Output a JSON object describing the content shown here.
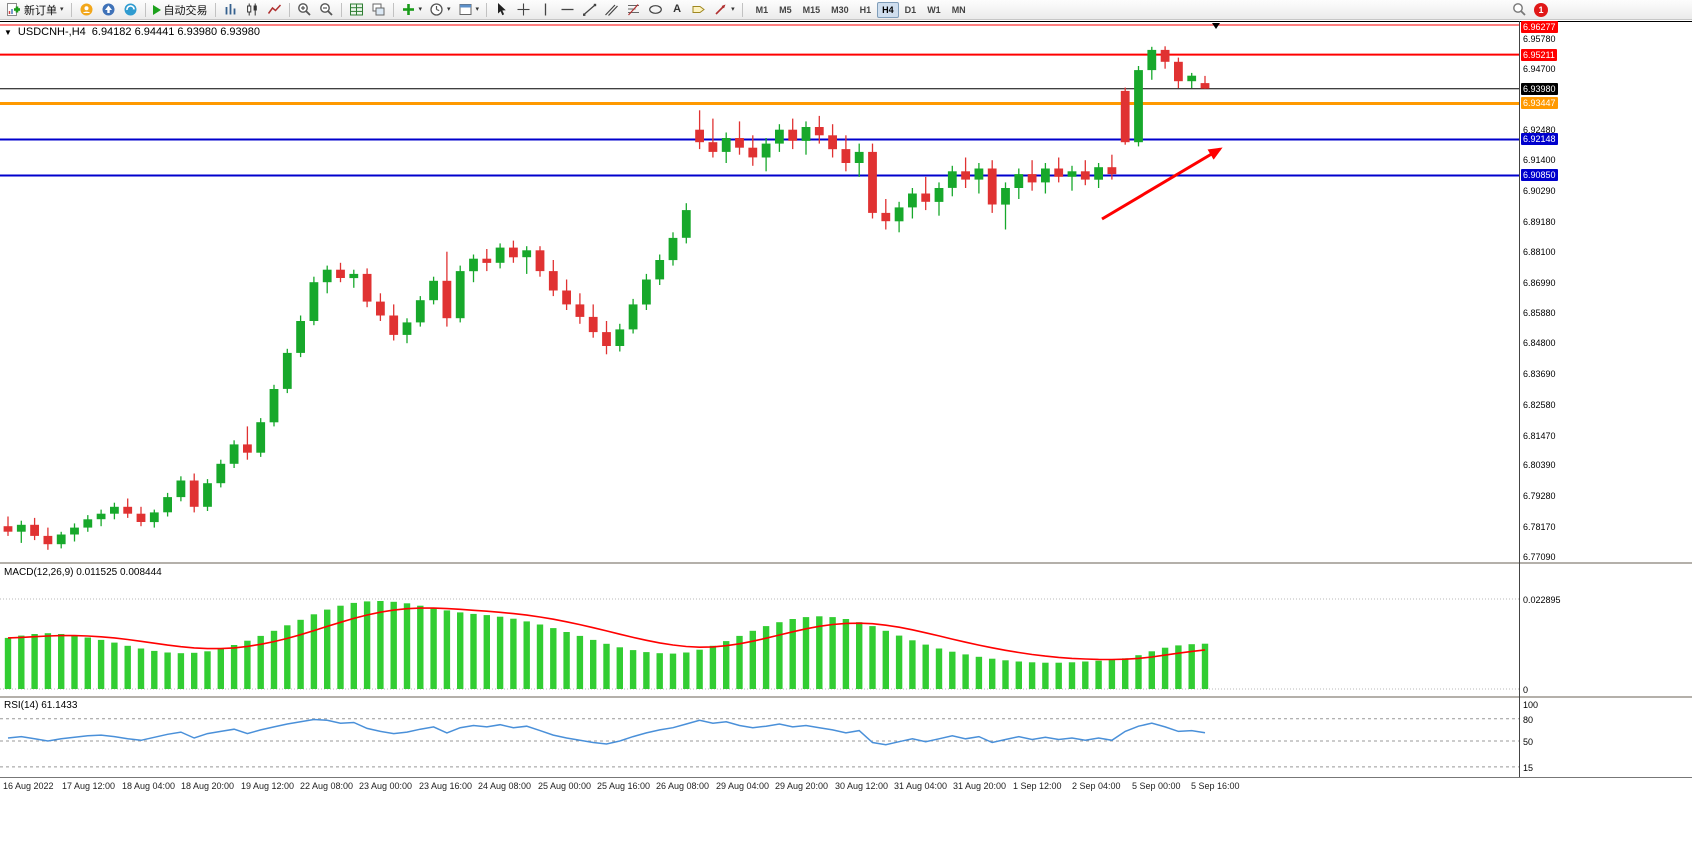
{
  "toolbar": {
    "new_order": "新订单",
    "auto_trading": "自动交易",
    "text_tool_glyph": "A",
    "timeframes": [
      "M1",
      "M5",
      "M15",
      "M30",
      "H1",
      "H4",
      "D1",
      "W1",
      "MN"
    ],
    "active_timeframe": "H4",
    "notification_count": "1"
  },
  "chart_header": {
    "symbol_period": "USDCNH-,H4",
    "ohlc": "6.94182 6.94441 6.93980 6.93980"
  },
  "price_axis": [
    {
      "text": "6.96277",
      "type": "red"
    },
    {
      "text": "6.95780",
      "type": "plain"
    },
    {
      "text": "6.95211",
      "type": "red"
    },
    {
      "text": "6.94700",
      "type": "plain"
    },
    {
      "text": "6.93980",
      "type": "black"
    },
    {
      "text": "6.93447",
      "type": "orange"
    },
    {
      "text": "6.92480",
      "type": "plain"
    },
    {
      "text": "6.92148",
      "type": "blue"
    },
    {
      "text": "6.91400",
      "type": "plain"
    },
    {
      "text": "6.90850",
      "type": "blue"
    },
    {
      "text": "6.90290",
      "type": "plain"
    },
    {
      "text": "6.89180",
      "type": "plain"
    },
    {
      "text": "6.88100",
      "type": "plain"
    },
    {
      "text": "6.86990",
      "type": "plain"
    },
    {
      "text": "6.85880",
      "type": "plain"
    },
    {
      "text": "6.84800",
      "type": "plain"
    },
    {
      "text": "6.83690",
      "type": "plain"
    },
    {
      "text": "6.82580",
      "type": "plain"
    },
    {
      "text": "6.81470",
      "type": "plain"
    },
    {
      "text": "6.80390",
      "type": "plain"
    },
    {
      "text": "6.79280",
      "type": "plain"
    },
    {
      "text": "6.78170",
      "type": "plain"
    },
    {
      "text": "6.77090",
      "type": "plain"
    }
  ],
  "macd_panel": {
    "label": "MACD(12,26,9) 0.011525 0.008444",
    "axis": [
      "0.022895",
      "0"
    ]
  },
  "rsi_panel": {
    "label": "RSI(14) 61.1433",
    "axis": [
      "100",
      "80",
      "50",
      "15"
    ]
  },
  "time_axis": [
    "16 Aug 2022",
    "17 Aug 12:00",
    "18 Aug 04:00",
    "18 Aug 20:00",
    "19 Aug 12:00",
    "22 Aug 08:00",
    "23 Aug 00:00",
    "23 Aug 16:00",
    "24 Aug 08:00",
    "25 Aug 00:00",
    "25 Aug 16:00",
    "26 Aug 08:00",
    "29 Aug 04:00",
    "29 Aug 20:00",
    "30 Aug 12:00",
    "31 Aug 04:00",
    "31 Aug 20:00",
    "1 Sep 12:00",
    "2 Sep 04:00",
    "5 Sep 00:00",
    "5 Sep 16:00"
  ],
  "chart_data": {
    "type": "candlestick",
    "symbol": "USDCNH-",
    "timeframe": "H4",
    "current_ohlc": {
      "open": 6.94182,
      "high": 6.94441,
      "low": 6.9398,
      "close": 6.9398
    },
    "colors": {
      "up": "#17a82b",
      "down": "#e03232",
      "macd_histogram": "#32cd32",
      "macd_signal": "#ff0000",
      "rsi_line": "#4a90d9",
      "level_red": "#ff0000",
      "level_black": "#000000",
      "level_orange": "#ff9900",
      "level_blue": "#0000cd"
    },
    "levels": [
      {
        "value": 6.96277,
        "color": "#ff0000",
        "width": 1
      },
      {
        "value": 6.95211,
        "color": "#ff0000",
        "width": 2
      },
      {
        "value": 6.9398,
        "color": "#000000",
        "width": 1
      },
      {
        "value": 6.93447,
        "color": "#ff9900",
        "width": 3
      },
      {
        "value": 6.92148,
        "color": "#0000cd",
        "width": 2
      },
      {
        "value": 6.9085,
        "color": "#0000cd",
        "width": 2
      }
    ],
    "candles": [
      [
        6.782,
        6.7855,
        6.7785,
        6.78
      ],
      [
        6.78,
        6.784,
        6.776,
        6.7825
      ],
      [
        6.7825,
        6.785,
        6.777,
        6.7785
      ],
      [
        6.7785,
        6.7815,
        6.7735,
        6.7755
      ],
      [
        6.7755,
        6.78,
        6.774,
        6.779
      ],
      [
        6.779,
        6.783,
        6.7765,
        6.7815
      ],
      [
        6.7815,
        6.786,
        6.78,
        6.7845
      ],
      [
        6.7845,
        6.788,
        6.782,
        6.7865
      ],
      [
        6.7865,
        6.7905,
        6.7845,
        6.789
      ],
      [
        6.789,
        6.792,
        6.785,
        6.7865
      ],
      [
        6.7865,
        6.789,
        6.782,
        6.7835
      ],
      [
        6.7835,
        6.788,
        6.7815,
        6.787
      ],
      [
        6.787,
        6.794,
        6.7855,
        6.7925
      ],
      [
        6.7925,
        6.8,
        6.791,
        6.7985
      ],
      [
        6.7985,
        6.801,
        6.787,
        6.789
      ],
      [
        6.789,
        6.799,
        6.7875,
        6.7975
      ],
      [
        6.7975,
        6.806,
        6.796,
        6.8045
      ],
      [
        6.8045,
        6.813,
        6.803,
        6.8115
      ],
      [
        6.8115,
        6.818,
        6.806,
        6.8085
      ],
      [
        6.8085,
        6.821,
        6.807,
        6.8195
      ],
      [
        6.8195,
        6.833,
        6.818,
        6.8315
      ],
      [
        6.8315,
        6.846,
        6.83,
        6.8445
      ],
      [
        6.8445,
        6.858,
        6.843,
        6.856
      ],
      [
        6.856,
        6.872,
        6.8545,
        6.87
      ],
      [
        6.87,
        6.876,
        6.866,
        6.8745
      ],
      [
        6.8745,
        6.877,
        6.87,
        6.8715
      ],
      [
        6.8715,
        6.8745,
        6.868,
        6.873
      ],
      [
        6.873,
        6.875,
        6.861,
        6.863
      ],
      [
        6.863,
        6.866,
        6.856,
        6.858
      ],
      [
        6.858,
        6.862,
        6.849,
        6.851
      ],
      [
        6.851,
        6.857,
        6.848,
        6.8555
      ],
      [
        6.8555,
        6.865,
        6.854,
        6.8635
      ],
      [
        6.8635,
        6.872,
        6.862,
        6.8705
      ],
      [
        6.8705,
        6.881,
        6.854,
        6.857
      ],
      [
        6.857,
        6.876,
        6.8555,
        6.874
      ],
      [
        6.874,
        6.88,
        6.87,
        6.8785
      ],
      [
        6.8785,
        6.882,
        6.874,
        6.877
      ],
      [
        6.877,
        6.884,
        6.875,
        6.8825
      ],
      [
        6.8825,
        6.885,
        6.877,
        6.879
      ],
      [
        6.879,
        6.883,
        6.873,
        6.8815
      ],
      [
        6.8815,
        6.883,
        6.872,
        6.874
      ],
      [
        6.874,
        6.878,
        6.865,
        6.867
      ],
      [
        6.867,
        6.871,
        6.86,
        6.862
      ],
      [
        6.862,
        6.866,
        6.855,
        6.8575
      ],
      [
        6.8575,
        6.862,
        6.85,
        6.852
      ],
      [
        6.852,
        6.856,
        6.844,
        6.847
      ],
      [
        6.847,
        6.855,
        6.845,
        6.853
      ],
      [
        6.853,
        6.864,
        6.8515,
        6.862
      ],
      [
        6.862,
        6.873,
        6.86,
        6.871
      ],
      [
        6.871,
        6.88,
        6.869,
        6.878
      ],
      [
        6.878,
        6.888,
        6.876,
        6.886
      ],
      [
        6.886,
        6.8985,
        6.884,
        6.896
      ],
      [
        6.925,
        6.932,
        6.918,
        6.9205
      ],
      [
        6.9205,
        6.929,
        6.915,
        6.917
      ],
      [
        6.917,
        6.924,
        6.913,
        6.922
      ],
      [
        6.922,
        6.928,
        6.916,
        6.9185
      ],
      [
        6.9185,
        6.923,
        6.912,
        6.915
      ],
      [
        6.915,
        6.922,
        6.91,
        6.92
      ],
      [
        6.92,
        6.927,
        6.917,
        6.925
      ],
      [
        6.925,
        6.929,
        6.918,
        6.921
      ],
      [
        6.921,
        6.928,
        6.916,
        6.926
      ],
      [
        6.926,
        6.93,
        6.92,
        6.923
      ],
      [
        6.923,
        6.927,
        6.915,
        6.918
      ],
      [
        6.918,
        6.923,
        6.91,
        6.913
      ],
      [
        6.913,
        6.92,
        6.908,
        6.917
      ],
      [
        6.917,
        6.92,
        6.893,
        6.895
      ],
      [
        6.895,
        6.9,
        6.889,
        6.892
      ],
      [
        6.892,
        6.899,
        6.888,
        6.897
      ],
      [
        6.897,
        6.904,
        6.893,
        6.902
      ],
      [
        6.902,
        6.908,
        6.896,
        6.899
      ],
      [
        6.899,
        6.906,
        6.894,
        6.904
      ],
      [
        6.904,
        6.912,
        6.901,
        6.91
      ],
      [
        6.91,
        6.915,
        6.904,
        6.907
      ],
      [
        6.907,
        6.913,
        6.902,
        6.911
      ],
      [
        6.911,
        6.914,
        6.895,
        6.898
      ],
      [
        6.898,
        6.906,
        6.889,
        6.904
      ],
      [
        6.904,
        6.911,
        6.9,
        6.909
      ],
      [
        6.909,
        6.914,
        6.903,
        6.906
      ],
      [
        6.906,
        6.913,
        6.902,
        6.911
      ],
      [
        6.911,
        6.915,
        6.906,
        6.908
      ],
      [
        6.908,
        6.912,
        6.903,
        6.91
      ],
      [
        6.91,
        6.914,
        6.905,
        6.907
      ],
      [
        6.907,
        6.913,
        6.904,
        6.9115
      ],
      [
        6.9115,
        6.916,
        6.907,
        6.909
      ],
      [
        6.939,
        6.9402,
        6.9196,
        6.9205
      ],
      [
        6.9205,
        6.948,
        6.919,
        6.9465
      ],
      [
        6.9465,
        6.9549,
        6.943,
        6.9538
      ],
      [
        6.9538,
        6.9551,
        6.947,
        6.9495
      ],
      [
        6.9495,
        6.951,
        6.94,
        6.9425
      ],
      [
        6.9425,
        6.9455,
        6.94,
        6.9445
      ],
      [
        6.94182,
        6.94441,
        6.9398,
        6.9398
      ]
    ],
    "macd": {
      "value": 0.011525,
      "signal_value": 0.008444,
      "scale_max": 0.022895,
      "histogram": [
        0.013,
        0.0136,
        0.014,
        0.0142,
        0.014,
        0.0136,
        0.0131,
        0.0125,
        0.0118,
        0.011,
        0.0103,
        0.0097,
        0.0093,
        0.0091,
        0.0092,
        0.0096,
        0.0103,
        0.0112,
        0.0123,
        0.0135,
        0.0148,
        0.0162,
        0.0176,
        0.019,
        0.0202,
        0.0212,
        0.0219,
        0.0223,
        0.0224,
        0.0222,
        0.0218,
        0.0212,
        0.0206,
        0.02,
        0.0195,
        0.0191,
        0.0188,
        0.0184,
        0.0179,
        0.0172,
        0.0164,
        0.0155,
        0.0145,
        0.0135,
        0.0125,
        0.0115,
        0.0106,
        0.0099,
        0.0094,
        0.0091,
        0.009,
        0.0093,
        0.01,
        0.011,
        0.0122,
        0.0135,
        0.0148,
        0.016,
        0.017,
        0.0178,
        0.0183,
        0.0185,
        0.0183,
        0.0178,
        0.017,
        0.016,
        0.0148,
        0.0136,
        0.0124,
        0.0113,
        0.0103,
        0.0095,
        0.0088,
        0.0082,
        0.0077,
        0.0073,
        0.007,
        0.0068,
        0.0067,
        0.0067,
        0.0068,
        0.007,
        0.0072,
        0.0074,
        0.0078,
        0.0086,
        0.0096,
        0.0105,
        0.0111,
        0.0114,
        0.011525
      ]
    },
    "rsi": {
      "value": 61.1433,
      "levels": [
        80,
        50,
        15
      ],
      "values": [
        54,
        56,
        53,
        50,
        53,
        55,
        57,
        58,
        56,
        53,
        51,
        55,
        59,
        62,
        54,
        60,
        63,
        66,
        60,
        65,
        69,
        73,
        76,
        79,
        78,
        74,
        75,
        67,
        63,
        60,
        62,
        66,
        69,
        61,
        68,
        71,
        69,
        72,
        68,
        70,
        64,
        58,
        54,
        51,
        48,
        46,
        50,
        56,
        61,
        65,
        68,
        73,
        78,
        74,
        76,
        71,
        68,
        70,
        73,
        69,
        71,
        68,
        65,
        61,
        64,
        48,
        45,
        49,
        53,
        49,
        53,
        57,
        53,
        56,
        48,
        52,
        56,
        52,
        55,
        52,
        54,
        51,
        54,
        51,
        63,
        70,
        74,
        69,
        63,
        64,
        61.14
      ]
    },
    "annotations": [
      {
        "type": "arrow",
        "direction": "up-right",
        "color": "#ff0000"
      }
    ]
  }
}
